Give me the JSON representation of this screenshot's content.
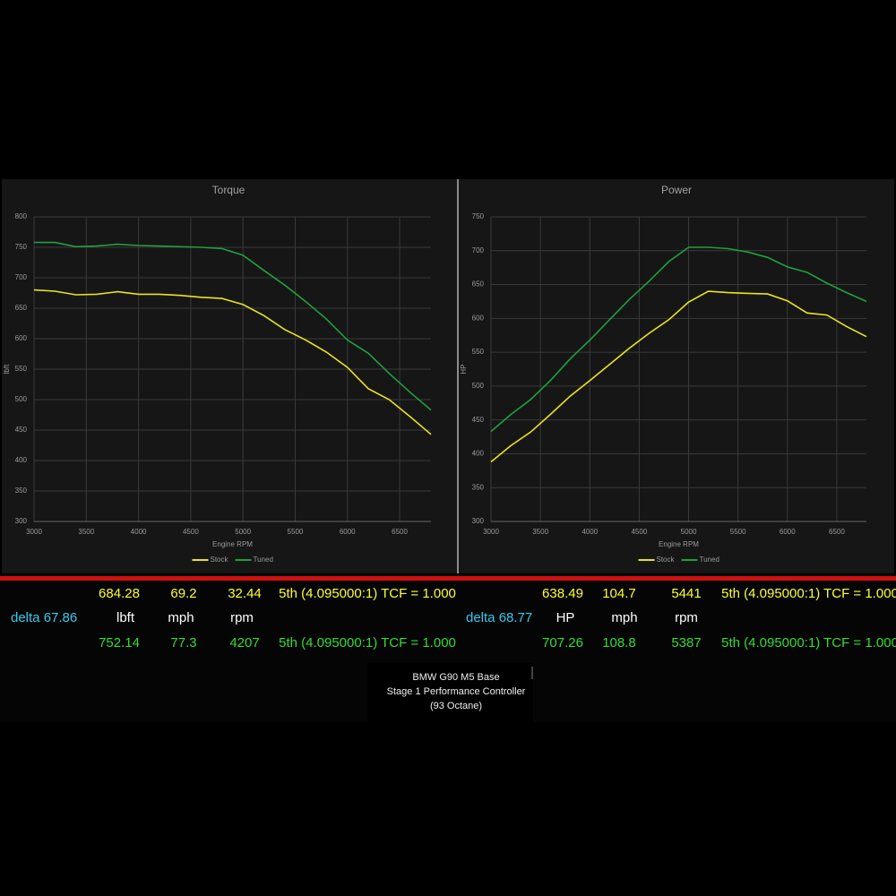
{
  "chart_data": [
    {
      "type": "line",
      "title": "Torque",
      "x_label": "Engine RPM",
      "y_label": "lbft",
      "x": [
        3000,
        3200,
        3400,
        3600,
        3800,
        4000,
        4200,
        4400,
        4600,
        4800,
        5000,
        5200,
        5400,
        5600,
        5800,
        6000,
        6200,
        6400,
        6600,
        6800
      ],
      "series": [
        {
          "name": "Stock",
          "color": "#e8e61a",
          "values": [
            680,
            678,
            672,
            673,
            677,
            673,
            673,
            671,
            668,
            666,
            656,
            638,
            615,
            598,
            578,
            553,
            518,
            500,
            472,
            443
          ]
        },
        {
          "name": "Tuned",
          "color": "#1fa040",
          "values": [
            758,
            758,
            751,
            752,
            755,
            753,
            752,
            751,
            750,
            748,
            737,
            712,
            688,
            661,
            632,
            598,
            576,
            543,
            512,
            483
          ]
        }
      ],
      "xlim": [
        3000,
        6800
      ],
      "xticks": [
        3000,
        3500,
        4000,
        4500,
        5000,
        5500,
        6000,
        6500
      ],
      "ylim": [
        300,
        800
      ],
      "yticks": [
        300,
        350,
        400,
        450,
        500,
        550,
        600,
        650,
        700,
        750,
        800
      ],
      "grid": true,
      "legend": "bottom"
    },
    {
      "type": "line",
      "title": "Power",
      "x_label": "Engine RPM",
      "y_label": "HP",
      "x": [
        3000,
        3200,
        3400,
        3600,
        3800,
        4000,
        4200,
        4400,
        4600,
        4800,
        5000,
        5200,
        5400,
        5600,
        5800,
        6000,
        6200,
        6400,
        6600,
        6800
      ],
      "series": [
        {
          "name": "Stock",
          "color": "#e8e61a",
          "values": [
            388,
            412,
            432,
            458,
            485,
            508,
            532,
            556,
            578,
            598,
            624,
            640,
            638,
            637,
            636,
            626,
            608,
            605,
            588,
            573
          ]
        },
        {
          "name": "Tuned",
          "color": "#1fa040",
          "values": [
            433,
            458,
            480,
            508,
            540,
            568,
            598,
            628,
            655,
            684,
            705,
            705,
            703,
            698,
            690,
            676,
            668,
            652,
            638,
            625
          ]
        }
      ],
      "xlim": [
        3000,
        6800
      ],
      "xticks": [
        3000,
        3500,
        4000,
        4500,
        5000,
        5500,
        6000,
        6500
      ],
      "ylim": [
        300,
        750
      ],
      "yticks": [
        300,
        350,
        400,
        450,
        500,
        550,
        600,
        650,
        700,
        750
      ],
      "grid": true,
      "legend": "bottom"
    }
  ],
  "readouts": [
    {
      "stock": [
        "684.28",
        "69.2",
        "32.44",
        "5th (4.095000:1) TCF = 1.000"
      ],
      "delta": "delta 67.86",
      "units": [
        "lbft",
        "mph",
        "rpm"
      ],
      "tuned": [
        "752.14",
        "77.3",
        "4207",
        "5th (4.095000:1) TCF = 1.000"
      ]
    },
    {
      "stock": [
        "638.49",
        "104.7",
        "5441",
        "5th (4.095000:1) TCF = 1.000"
      ],
      "delta": "delta 68.77",
      "units": [
        "HP",
        "mph",
        "rpm"
      ],
      "tuned": [
        "707.26",
        "108.8",
        "5387",
        "5th (4.095000:1) TCF = 1.000"
      ]
    }
  ],
  "caption": [
    "BMW G90 M5 Base",
    "Stage 1 Performance Controller",
    "(93 Octane)"
  ]
}
